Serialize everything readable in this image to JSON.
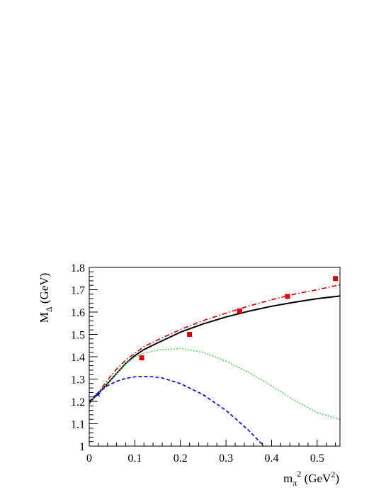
{
  "chart_data": {
    "type": "line",
    "xlabel": {
      "main": "m",
      "sub": "π",
      "sup": "2",
      "unit_prefix": " (GeV",
      "unit_sup": "2",
      "unit_suffix": ")"
    },
    "ylabel": {
      "main": "M",
      "sub": "Δ",
      "unit": " (GeV)"
    },
    "xlim": [
      0,
      0.55
    ],
    "ylim": [
      1.0,
      1.8
    ],
    "x_ticks": [
      0,
      0.1,
      0.2,
      0.3,
      0.4,
      0.5
    ],
    "x_tick_labels": [
      "0",
      "0.1",
      "0.2",
      "0.3",
      "0.4",
      "0.5"
    ],
    "y_ticks": [
      1.0,
      1.1,
      1.2,
      1.3,
      1.4,
      1.5,
      1.6,
      1.7,
      1.8
    ],
    "y_tick_labels": [
      "1",
      "1.1",
      "1.2",
      "1.3",
      "1.4",
      "1.5",
      "1.6",
      "1.7",
      "1.8"
    ],
    "grid": false,
    "legend": "none",
    "series": [
      {
        "style": "solid",
        "color": "#000000",
        "x": [
          0,
          0.02,
          0.04,
          0.06,
          0.08,
          0.1,
          0.12,
          0.15,
          0.2,
          0.25,
          0.3,
          0.35,
          0.4,
          0.45,
          0.5,
          0.55
        ],
        "y": [
          1.195,
          1.235,
          1.28,
          1.325,
          1.37,
          1.405,
          1.432,
          1.462,
          1.51,
          1.547,
          1.578,
          1.604,
          1.626,
          1.644,
          1.66,
          1.672
        ]
      },
      {
        "style": "dash-dot",
        "color": "#cc0000",
        "x": [
          0,
          0.02,
          0.04,
          0.06,
          0.08,
          0.1,
          0.12,
          0.15,
          0.2,
          0.25,
          0.3,
          0.35,
          0.4,
          0.45,
          0.5,
          0.55
        ],
        "y": [
          1.19,
          1.24,
          1.295,
          1.345,
          1.385,
          1.415,
          1.445,
          1.475,
          1.522,
          1.562,
          1.595,
          1.627,
          1.655,
          1.68,
          1.7,
          1.722
        ]
      },
      {
        "style": "dotted",
        "color": "#22cc22",
        "x": [
          0,
          0.02,
          0.04,
          0.06,
          0.08,
          0.1,
          0.12,
          0.15,
          0.2,
          0.25,
          0.3,
          0.35,
          0.4,
          0.45,
          0.5,
          0.55
        ],
        "y": [
          1.195,
          1.235,
          1.28,
          1.325,
          1.37,
          1.4,
          1.415,
          1.43,
          1.437,
          1.42,
          1.38,
          1.33,
          1.27,
          1.205,
          1.15,
          1.12
        ]
      },
      {
        "style": "dashed",
        "color": "#0000cc",
        "x": [
          0,
          0.02,
          0.04,
          0.06,
          0.08,
          0.1,
          0.12,
          0.14,
          0.16,
          0.2,
          0.25,
          0.3,
          0.35,
          0.383
        ],
        "y": [
          1.2,
          1.24,
          1.27,
          1.29,
          1.303,
          1.31,
          1.312,
          1.31,
          1.305,
          1.28,
          1.23,
          1.16,
          1.07,
          1.0
        ]
      }
    ],
    "points": [
      {
        "marker": "square",
        "color": "#dd0000",
        "x": [
          0.115,
          0.22,
          0.33,
          0.435,
          0.54
        ],
        "y": [
          1.395,
          1.5,
          1.605,
          1.67,
          1.75
        ]
      },
      {
        "marker": "star",
        "color": "#0000cc",
        "x": [
          0.0195
        ],
        "y": [
          1.232
        ]
      }
    ]
  }
}
